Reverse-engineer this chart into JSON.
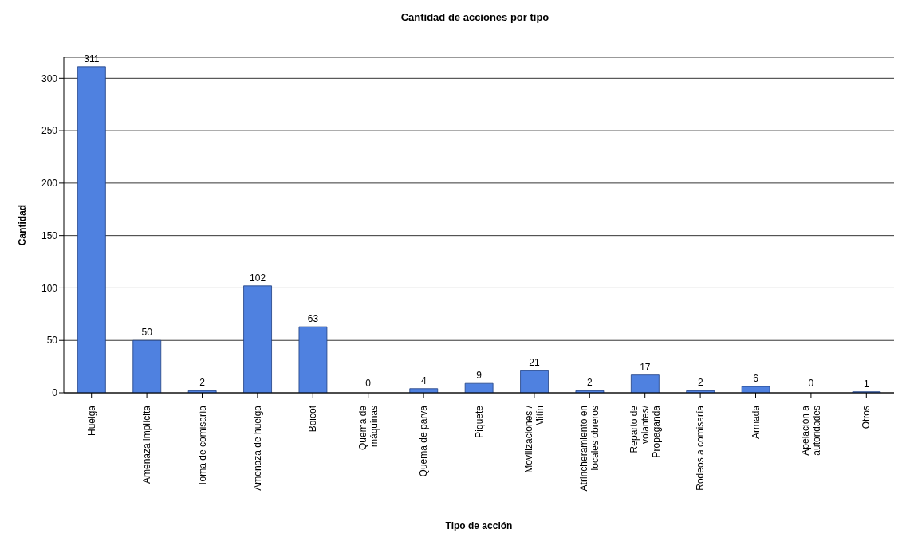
{
  "chart_data": {
    "type": "bar",
    "title": "Cantidad de acciones por tipo",
    "xlabel": "Tipo de acción",
    "ylabel": "Cantidad",
    "categories": [
      "Huelga",
      "Amenaza implícita",
      "Toma de comisaría",
      "Amenaza de huelga",
      "Boicot",
      "Quema de\nmáquinas",
      "Quema de parva",
      "Piquete",
      "Movilizaciones /\nMitín",
      "Atrincheramiento en\nlocales obreros",
      "Reparto de\nvolantes/\nPropaganda",
      "Rodeos a comisaría",
      "Armada",
      "Apelación a\nautoridades",
      "Otros"
    ],
    "values": [
      311,
      50,
      2,
      102,
      63,
      0,
      4,
      9,
      21,
      2,
      17,
      2,
      6,
      0,
      1
    ],
    "color": "#4f81e0",
    "ylim": [
      0,
      320
    ],
    "yticks": [
      0,
      50,
      100,
      150,
      200,
      250,
      300
    ],
    "grid": "y",
    "data_labels": true
  }
}
